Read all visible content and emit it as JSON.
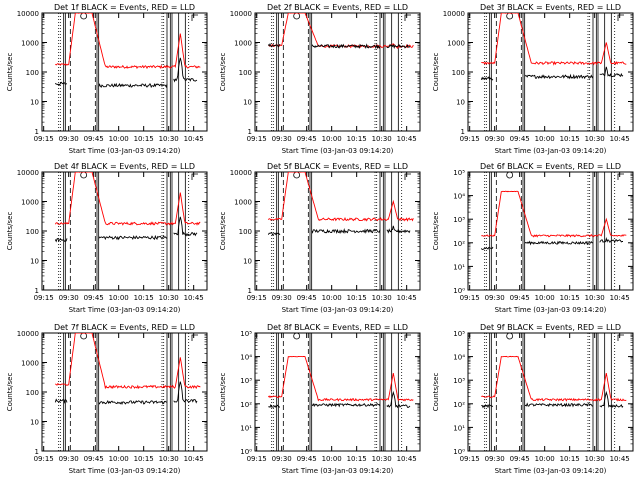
{
  "colors": {
    "events": "#000000",
    "lld": "#ff0000",
    "axis": "#000000",
    "background": "#ffffff"
  },
  "chart_data": [
    {
      "type": "line",
      "title": "Det 1f BLACK = Events, RED = LLD",
      "xlabel": "Start Time (03-Jan-03 09:14:20)",
      "ylabel": "Counts/sec",
      "yscale": "log",
      "ylim": [
        1,
        10000
      ],
      "xlim": [
        "09:14",
        "10:53"
      ],
      "x_ticks": [
        "09:15",
        "09:30",
        "09:45",
        "10:00",
        "10:15",
        "10:30",
        "10:45"
      ],
      "y_ticks": [
        "1",
        "10",
        "100",
        "1000",
        "10000"
      ],
      "lld_levels": {
        "quiet": 180,
        "peak": 10000,
        "late": 150
      },
      "events_levels": {
        "quiet": 40,
        "mid": 35,
        "late": 55
      },
      "spike": {
        "time": "10:37",
        "value": 2000
      }
    },
    {
      "type": "line",
      "title": "Det 2f BLACK = Events, RED = LLD",
      "xlabel": "Start Time (03-Jan-03 09:14:20)",
      "ylabel": "Counts/sec",
      "yscale": "log",
      "ylim": [
        1,
        10000
      ],
      "xlim": [
        "09:14",
        "10:53"
      ],
      "x_ticks": [
        "09:15",
        "09:30",
        "09:45",
        "10:00",
        "10:15",
        "10:30",
        "10:45"
      ],
      "y_ticks": [
        "1",
        "10",
        "100",
        "1000",
        "10000"
      ],
      "lld_levels": {
        "quiet": 800,
        "peak": 10000,
        "late": 750
      },
      "events_levels": {
        "quiet": 800,
        "mid": 750,
        "late": 750
      },
      "spike": {
        "time": "10:37",
        "value": 900
      }
    },
    {
      "type": "line",
      "title": "Det 3f BLACK = Events, RED = LLD",
      "xlabel": "Start Time (03-Jan-03 09:14:20)",
      "ylabel": "Counts/sec",
      "yscale": "log",
      "ylim": [
        1,
        10000
      ],
      "xlim": [
        "09:14",
        "10:53"
      ],
      "x_ticks": [
        "09:15",
        "09:30",
        "09:45",
        "10:00",
        "10:15",
        "10:30",
        "10:45"
      ],
      "y_ticks": [
        "1",
        "10",
        "100",
        "1000",
        "10000"
      ],
      "lld_levels": {
        "quiet": 200,
        "peak": 10000,
        "late": 200
      },
      "events_levels": {
        "quiet": 60,
        "mid": 70,
        "late": 80
      },
      "spike": {
        "time": "10:37",
        "value": 1000
      }
    },
    {
      "type": "line",
      "title": "Det 4f BLACK = Events, RED = LLD",
      "xlabel": "Start Time (03-Jan-03 09:14:20)",
      "ylabel": "Counts/sec",
      "yscale": "log",
      "ylim": [
        1,
        10000
      ],
      "xlim": [
        "09:14",
        "10:53"
      ],
      "x_ticks": [
        "09:15",
        "09:30",
        "09:45",
        "10:00",
        "10:15",
        "10:30",
        "10:45"
      ],
      "y_ticks": [
        "1",
        "10",
        "100",
        "1000",
        "10000"
      ],
      "lld_levels": {
        "quiet": 180,
        "peak": 10000,
        "late": 180
      },
      "events_levels": {
        "quiet": 50,
        "mid": 60,
        "late": 80
      },
      "spike": {
        "time": "10:37",
        "value": 2000
      }
    },
    {
      "type": "line",
      "title": "Det 5f BLACK = Events, RED = LLD",
      "xlabel": "Start Time (03-Jan-03 09:14:20)",
      "ylabel": "Counts/sec",
      "yscale": "log",
      "ylim": [
        1,
        10000
      ],
      "xlim": [
        "09:14",
        "10:53"
      ],
      "x_ticks": [
        "09:15",
        "09:30",
        "09:45",
        "10:00",
        "10:15",
        "10:30",
        "10:45"
      ],
      "y_ticks": [
        "1",
        "10",
        "100",
        "1000",
        "10000"
      ],
      "lld_levels": {
        "quiet": 250,
        "peak": 10000,
        "late": 250
      },
      "events_levels": {
        "quiet": 80,
        "mid": 100,
        "late": 100
      },
      "spike": {
        "time": "10:37",
        "value": 1000
      }
    },
    {
      "type": "line",
      "title": "Det 6f BLACK = Events, RED = LLD",
      "xlabel": "Start Time (03-Jan-03 09:14:20)",
      "ylabel": "Counts/sec",
      "yscale": "log",
      "ylim": [
        1,
        100000
      ],
      "xlim": [
        "09:14",
        "10:53"
      ],
      "x_ticks": [
        "09:15",
        "09:30",
        "09:45",
        "10:00",
        "10:15",
        "10:30",
        "10:45"
      ],
      "y_ticks": [
        "10⁰",
        "10¹",
        "10²",
        "10³",
        "10⁴",
        "10⁵"
      ],
      "lld_levels": {
        "quiet": 200,
        "peak": 15000,
        "late": 200
      },
      "events_levels": {
        "quiet": 60,
        "mid": 100,
        "late": 120
      },
      "spike": {
        "time": "10:37",
        "value": 1000
      }
    },
    {
      "type": "line",
      "title": "Det 7f BLACK = Events, RED = LLD",
      "xlabel": "Start Time (03-Jan-03 09:14:20)",
      "ylabel": "Counts/sec",
      "yscale": "log",
      "ylim": [
        1,
        10000
      ],
      "xlim": [
        "09:14",
        "10:53"
      ],
      "x_ticks": [
        "09:15",
        "09:30",
        "09:45",
        "10:00",
        "10:15",
        "10:30",
        "10:45"
      ],
      "y_ticks": [
        "1",
        "10",
        "100",
        "1000",
        "10000"
      ],
      "lld_levels": {
        "quiet": 180,
        "peak": 10000,
        "late": 150
      },
      "events_levels": {
        "quiet": 50,
        "mid": 45,
        "late": 50
      },
      "spike": {
        "time": "10:37",
        "value": 1500
      }
    },
    {
      "type": "line",
      "title": "Det 8f BLACK = Events, RED = LLD",
      "xlabel": "Start Time (03-Jan-03 09:14:20)",
      "ylabel": "Counts/sec",
      "yscale": "log",
      "ylim": [
        1,
        100000
      ],
      "xlim": [
        "09:14",
        "10:53"
      ],
      "x_ticks": [
        "09:15",
        "09:30",
        "09:45",
        "10:00",
        "10:15",
        "10:30",
        "10:45"
      ],
      "y_ticks": [
        "10⁰",
        "10¹",
        "10²",
        "10³",
        "10⁴",
        "10⁵"
      ],
      "lld_levels": {
        "quiet": 200,
        "peak": 10000,
        "late": 150
      },
      "events_levels": {
        "quiet": 80,
        "mid": 90,
        "late": 80
      },
      "spike": {
        "time": "10:37",
        "value": 2000
      }
    },
    {
      "type": "line",
      "title": "Det 9f BLACK = Events, RED = LLD",
      "xlabel": "Start Time (03-Jan-03 09:14:20)",
      "ylabel": "Counts/sec",
      "yscale": "log",
      "ylim": [
        1,
        100000
      ],
      "xlim": [
        "09:14",
        "10:53"
      ],
      "x_ticks": [
        "09:15",
        "09:30",
        "09:45",
        "10:00",
        "10:15",
        "10:30",
        "10:45"
      ],
      "y_ticks": [
        "10⁰",
        "10¹",
        "10²",
        "10³",
        "10⁴",
        "10⁵"
      ],
      "lld_levels": {
        "quiet": 200,
        "peak": 10000,
        "late": 150
      },
      "events_levels": {
        "quiet": 80,
        "mid": 90,
        "late": 80
      },
      "spike": {
        "time": "10:37",
        "value": 2000
      }
    }
  ]
}
